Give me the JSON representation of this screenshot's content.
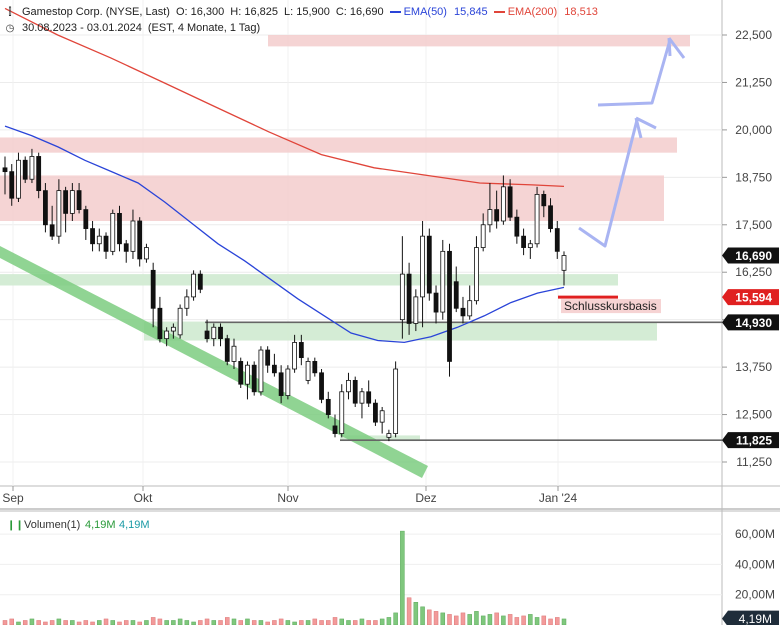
{
  "header": {
    "instrument": "Gamestop Corp. (NYSE, Last)",
    "o": "O: 16,300",
    "h": "H: 16,825",
    "l": "L: 15,900",
    "c": "C: 16,690",
    "ema50_label": "EMA(50)",
    "ema50_value": "15,845",
    "ema200_label": "EMA(200)",
    "ema200_value": "18,513",
    "range": "30.08.2023 - 03.01.2024",
    "range_info": "(EST, 4 Monate, 1 Tag)"
  },
  "colors": {
    "ema50": "#2a44d8",
    "ema200": "#e0453a",
    "resistance_zone": "#f3cccc",
    "support_zone": "#cfead0",
    "trend_channel": "#7dcc80",
    "arrow": "#a9b4f2",
    "price_badge": "#111111",
    "basis_badge": "#e02020",
    "vol_up": "#7fc77d",
    "vol_down": "#f29a9a"
  },
  "chart_data": [
    {
      "type": "candlestick",
      "yaxis_ticks": [
        "11,250",
        "12,500",
        "13,750",
        "15,000",
        "16,250",
        "17,500",
        "18,750",
        "20,000",
        "21,250",
        "22,500"
      ],
      "ylim": [
        10.8,
        22.8
      ],
      "x_labels": [
        "Sep",
        "Okt",
        "Nov",
        "Dez",
        "Jan '24"
      ],
      "price_labels": [
        {
          "text": "16,690",
          "style": "price"
        },
        {
          "text": "15,594",
          "style": "basis"
        },
        {
          "text": "14,930",
          "style": "level"
        },
        {
          "text": "11,825",
          "style": "level"
        }
      ],
      "annotation": "Schlusskursbasis",
      "horizontal_levels": [
        14.93,
        11.825
      ],
      "resistance_zones": [
        [
          22.2,
          22.5
        ],
        [
          19.4,
          19.8
        ],
        [
          17.6,
          18.8
        ]
      ],
      "support_zones": [
        [
          15.9,
          16.2
        ],
        [
          14.45,
          14.95
        ],
        [
          11.8,
          11.95
        ]
      ],
      "ohlc": [
        [
          19.0,
          19.3,
          18.3,
          18.9
        ],
        [
          18.9,
          19.1,
          18.0,
          18.2
        ],
        [
          18.2,
          19.4,
          18.1,
          19.2
        ],
        [
          19.2,
          19.3,
          18.6,
          18.7
        ],
        [
          18.7,
          19.5,
          18.6,
          19.3
        ],
        [
          19.3,
          19.4,
          18.2,
          18.4
        ],
        [
          18.4,
          18.6,
          17.3,
          17.5
        ],
        [
          17.5,
          18.0,
          17.1,
          17.2
        ],
        [
          17.2,
          18.7,
          17.0,
          18.4
        ],
        [
          18.4,
          18.5,
          17.3,
          17.8
        ],
        [
          17.8,
          18.6,
          17.6,
          18.4
        ],
        [
          18.4,
          18.6,
          17.8,
          17.9
        ],
        [
          17.9,
          18.0,
          17.1,
          17.4
        ],
        [
          17.4,
          17.6,
          16.8,
          17.0
        ],
        [
          17.0,
          17.4,
          16.8,
          17.2
        ],
        [
          17.2,
          17.3,
          16.6,
          16.8
        ],
        [
          16.8,
          17.9,
          16.7,
          17.8
        ],
        [
          17.8,
          18.0,
          16.8,
          17.0
        ],
        [
          17.0,
          17.1,
          16.5,
          16.8
        ],
        [
          16.8,
          17.9,
          16.6,
          17.6
        ],
        [
          17.6,
          17.7,
          16.4,
          16.6
        ],
        [
          16.6,
          17.0,
          16.5,
          16.9
        ],
        [
          16.3,
          16.5,
          14.8,
          15.3
        ],
        [
          15.3,
          15.6,
          14.4,
          14.5
        ],
        [
          14.5,
          14.8,
          14.3,
          14.7
        ],
        [
          14.7,
          14.9,
          14.5,
          14.8
        ],
        [
          14.6,
          15.4,
          14.5,
          15.3
        ],
        [
          15.3,
          15.8,
          15.1,
          15.6
        ],
        [
          15.6,
          16.3,
          15.5,
          16.2
        ],
        [
          16.2,
          16.3,
          15.7,
          15.8
        ],
        [
          14.7,
          15.0,
          14.4,
          14.5
        ],
        [
          14.5,
          14.9,
          14.3,
          14.8
        ],
        [
          14.8,
          14.9,
          14.3,
          14.5
        ],
        [
          14.5,
          14.6,
          13.8,
          13.9
        ],
        [
          13.9,
          14.5,
          13.7,
          14.3
        ],
        [
          13.9,
          14.0,
          13.2,
          13.3
        ],
        [
          13.3,
          13.9,
          12.9,
          13.8
        ],
        [
          13.8,
          13.9,
          13.0,
          13.1
        ],
        [
          13.1,
          14.3,
          13.0,
          14.2
        ],
        [
          14.2,
          14.3,
          13.6,
          13.8
        ],
        [
          13.8,
          14.1,
          13.5,
          13.6
        ],
        [
          13.6,
          13.8,
          12.8,
          13.0
        ],
        [
          13.0,
          13.8,
          12.9,
          13.7
        ],
        [
          13.7,
          14.6,
          13.6,
          14.4
        ],
        [
          14.4,
          14.6,
          13.8,
          14.0
        ],
        [
          13.4,
          14.0,
          13.3,
          13.9
        ],
        [
          13.9,
          14.0,
          13.5,
          13.6
        ],
        [
          13.6,
          13.7,
          12.8,
          12.9
        ],
        [
          12.9,
          13.1,
          12.4,
          12.5
        ],
        [
          12.2,
          12.5,
          11.9,
          12.0
        ],
        [
          12.0,
          13.3,
          11.9,
          13.1
        ],
        [
          13.1,
          13.6,
          12.9,
          13.4
        ],
        [
          13.4,
          13.5,
          12.7,
          12.8
        ],
        [
          12.8,
          13.2,
          12.4,
          13.1
        ],
        [
          13.1,
          13.4,
          12.7,
          12.8
        ],
        [
          12.8,
          12.9,
          12.2,
          12.3
        ],
        [
          12.3,
          12.7,
          12.0,
          12.6
        ],
        [
          11.9,
          12.1,
          11.8,
          12.0
        ],
        [
          12.0,
          13.9,
          11.9,
          13.7
        ],
        [
          15.0,
          17.2,
          14.5,
          16.2
        ],
        [
          16.2,
          16.5,
          14.6,
          14.9
        ],
        [
          14.9,
          15.8,
          14.7,
          15.6
        ],
        [
          15.6,
          17.6,
          14.8,
          17.2
        ],
        [
          17.2,
          17.4,
          15.5,
          15.7
        ],
        [
          15.7,
          15.9,
          14.9,
          15.2
        ],
        [
          15.2,
          17.1,
          15.0,
          16.8
        ],
        [
          16.8,
          17.0,
          13.5,
          13.9
        ],
        [
          16.0,
          16.4,
          15.2,
          15.3
        ],
        [
          15.3,
          15.6,
          14.9,
          15.1
        ],
        [
          15.1,
          15.9,
          15.0,
          15.5
        ],
        [
          15.5,
          17.2,
          15.4,
          16.9
        ],
        [
          16.9,
          17.8,
          16.8,
          17.5
        ],
        [
          17.5,
          18.6,
          17.3,
          17.9
        ],
        [
          17.9,
          18.4,
          17.4,
          17.6
        ],
        [
          17.6,
          18.8,
          17.5,
          18.5
        ],
        [
          18.5,
          18.7,
          17.6,
          17.7
        ],
        [
          17.7,
          17.9,
          17.0,
          17.2
        ],
        [
          17.2,
          17.4,
          16.7,
          16.9
        ],
        [
          16.9,
          17.1,
          16.6,
          17.0
        ],
        [
          17.0,
          18.5,
          16.9,
          18.3
        ],
        [
          18.3,
          18.4,
          17.7,
          18.0
        ],
        [
          18.0,
          18.2,
          17.3,
          17.4
        ],
        [
          17.4,
          17.6,
          16.6,
          16.8
        ],
        [
          16.3,
          16.8,
          15.9,
          16.69
        ]
      ],
      "ema50": [
        [
          0,
          20.1
        ],
        [
          6,
          19.85
        ],
        [
          12,
          19.55
        ],
        [
          18,
          19.2
        ],
        [
          24,
          18.9
        ],
        [
          30,
          18.6
        ],
        [
          36,
          18.1
        ],
        [
          42,
          17.55
        ],
        [
          48,
          17.0
        ],
        [
          54,
          16.55
        ],
        [
          60,
          16.05
        ],
        [
          66,
          15.55
        ],
        [
          72,
          15.1
        ],
        [
          78,
          14.65
        ],
        [
          84,
          14.45
        ],
        [
          90,
          14.4
        ],
        [
          96,
          14.55
        ],
        [
          102,
          14.8
        ],
        [
          108,
          15.1
        ],
        [
          114,
          15.45
        ],
        [
          120,
          15.7
        ],
        [
          126,
          15.85
        ]
      ],
      "ema200": [
        [
          0,
          23.2
        ],
        [
          20,
          22.5
        ],
        [
          40,
          21.9
        ],
        [
          60,
          21.25
        ],
        [
          80,
          20.6
        ],
        [
          100,
          19.95
        ],
        [
          120,
          19.35
        ],
        [
          140,
          19.0
        ],
        [
          160,
          18.8
        ],
        [
          180,
          18.6
        ],
        [
          200,
          18.55
        ],
        [
          212,
          18.51
        ]
      ],
      "volume": {
        "title": "Volumen(1)",
        "value": "4,19M",
        "value2": "4,19M",
        "ticks": [
          "20,00M",
          "40,00M",
          "60,00M"
        ],
        "current_label": "4,19M",
        "ylim": [
          0,
          70
        ],
        "values": [
          3,
          4,
          2,
          3,
          4,
          3,
          2,
          3,
          4,
          3,
          3,
          2,
          3,
          2,
          3,
          4,
          3,
          2,
          3,
          3,
          2,
          3,
          5,
          4,
          3,
          3,
          4,
          3,
          2,
          3,
          4,
          3,
          3,
          5,
          4,
          3,
          4,
          3,
          3,
          2,
          3,
          4,
          3,
          2,
          3,
          3,
          4,
          3,
          3,
          5,
          4,
          3,
          3,
          4,
          3,
          3,
          4,
          5,
          8,
          62,
          18,
          15,
          12,
          10,
          9,
          8,
          7,
          6,
          8,
          7,
          9,
          6,
          7,
          8,
          6,
          7,
          5,
          6,
          7,
          5,
          6,
          4,
          5,
          4
        ]
      }
    }
  ]
}
